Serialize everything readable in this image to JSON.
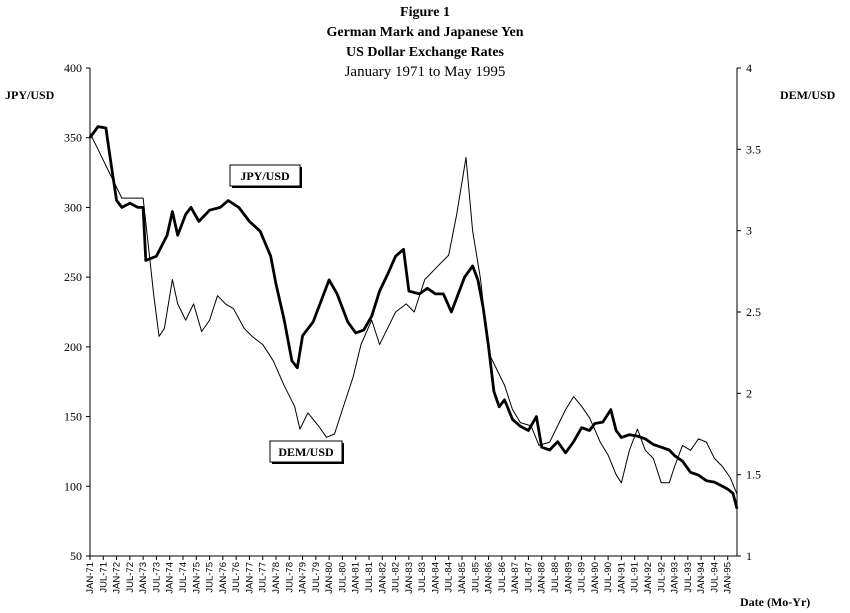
{
  "chart_data": {
    "type": "line",
    "title": "Figure 1",
    "subtitle_lines": [
      "German Mark and Japanese Yen",
      "US Dollar Exchange Rates",
      "January 1971 to May 1995"
    ],
    "ylabel_left": "JPY/USD",
    "ylabel_right": "DEM/USD",
    "xlabel": "Date (Mo-Yr)",
    "ylim_left": [
      50,
      400
    ],
    "ylim_right": [
      1,
      4
    ],
    "yticks_left": [
      "50",
      "100",
      "150",
      "200",
      "250",
      "300",
      "350",
      "400"
    ],
    "yticks_right": [
      "1",
      "1.5",
      "2",
      "2.5",
      "3",
      "3.5",
      "4"
    ],
    "x_tick_labels": [
      "JAN-71",
      "JUL-71",
      "JAN-72",
      "JUL-72",
      "JAN-73",
      "JUL-73",
      "JAN-74",
      "JUL-74",
      "JAN-75",
      "JUL-75",
      "JAN-76",
      "JUL-76",
      "JAN-77",
      "JUL-77",
      "JAN-78",
      "JUL-78",
      "JAN-79",
      "JUL-79",
      "JAN-80",
      "JUL-80",
      "JAN-81",
      "JUL-81",
      "JAN-82",
      "JUL-82",
      "JAN-83",
      "JUL-83",
      "JAN-84",
      "JUL-84",
      "JAN-85",
      "JUL-85",
      "JAN-86",
      "JUL-86",
      "JAN-87",
      "JUL-87",
      "JAN-88",
      "JUL-88",
      "JAN-89",
      "JUL-89",
      "JAN-90",
      "JUL-90",
      "JAN-91",
      "JUL-91",
      "JAN-92",
      "JUL-92",
      "JAN-93",
      "JUL-93",
      "JAN-94",
      "JUL-94",
      "JAN-95"
    ],
    "series": [
      {
        "name": "JPY/USD",
        "axis": "left",
        "style": "thick",
        "x": [
          1971.0,
          1971.3,
          1971.6,
          1971.8,
          1972.0,
          1972.2,
          1972.5,
          1972.8,
          1973.0,
          1973.1,
          1973.5,
          1973.9,
          1974.1,
          1974.3,
          1974.6,
          1974.8,
          1975.1,
          1975.5,
          1975.9,
          1976.2,
          1976.6,
          1977.0,
          1977.4,
          1977.8,
          1978.0,
          1978.3,
          1978.6,
          1978.8,
          1979.0,
          1979.4,
          1979.8,
          1980.0,
          1980.3,
          1980.7,
          1981.0,
          1981.3,
          1981.6,
          1981.9,
          1982.2,
          1982.5,
          1982.8,
          1983.0,
          1983.4,
          1983.7,
          1984.0,
          1984.3,
          1984.6,
          1984.9,
          1985.1,
          1985.4,
          1985.6,
          1985.8,
          1986.0,
          1986.2,
          1986.4,
          1986.6,
          1986.9,
          1987.2,
          1987.5,
          1987.8,
          1988.0,
          1988.3,
          1988.6,
          1988.9,
          1989.2,
          1989.5,
          1989.8,
          1990.0,
          1990.3,
          1990.6,
          1990.8,
          1991.0,
          1991.3,
          1991.6,
          1991.9,
          1992.2,
          1992.5,
          1992.8,
          1993.0,
          1993.3,
          1993.6,
          1993.9,
          1994.2,
          1994.5,
          1994.8,
          1995.0,
          1995.2,
          1995.35
        ],
        "values": [
          350,
          358,
          357,
          330,
          305,
          300,
          303,
          300,
          300,
          262,
          265,
          280,
          297,
          280,
          295,
          300,
          290,
          298,
          300,
          305,
          300,
          290,
          283,
          265,
          245,
          220,
          190,
          185,
          208,
          218,
          238,
          248,
          238,
          218,
          210,
          212,
          222,
          240,
          252,
          265,
          270,
          240,
          238,
          242,
          238,
          238,
          225,
          240,
          250,
          258,
          248,
          228,
          200,
          168,
          157,
          162,
          148,
          143,
          140,
          150,
          128,
          126,
          132,
          124,
          132,
          142,
          140,
          145,
          146,
          155,
          140,
          135,
          137,
          136,
          134,
          130,
          128,
          126,
          122,
          118,
          110,
          108,
          104,
          103,
          100,
          98,
          95,
          84
        ]
      },
      {
        "name": "DEM/USD",
        "axis": "right",
        "style": "thin",
        "x": [
          1971.0,
          1971.3,
          1971.6,
          1971.9,
          1972.2,
          1972.6,
          1973.0,
          1973.2,
          1973.4,
          1973.6,
          1973.8,
          1974.1,
          1974.3,
          1974.6,
          1974.9,
          1975.2,
          1975.5,
          1975.8,
          1976.1,
          1976.4,
          1976.8,
          1977.1,
          1977.5,
          1977.9,
          1978.3,
          1978.7,
          1978.9,
          1979.2,
          1979.6,
          1979.9,
          1980.2,
          1980.5,
          1980.9,
          1981.2,
          1981.6,
          1981.9,
          1982.2,
          1982.5,
          1982.9,
          1983.2,
          1983.6,
          1983.9,
          1984.2,
          1984.5,
          1984.8,
          1985.0,
          1985.15,
          1985.4,
          1985.7,
          1986.0,
          1986.3,
          1986.6,
          1986.9,
          1987.2,
          1987.6,
          1987.9,
          1988.3,
          1988.6,
          1988.9,
          1989.2,
          1989.5,
          1989.8,
          1990.2,
          1990.5,
          1990.8,
          1991.0,
          1991.3,
          1991.6,
          1991.9,
          1992.2,
          1992.5,
          1992.8,
          1993.0,
          1993.3,
          1993.6,
          1993.9,
          1994.2,
          1994.5,
          1994.8,
          1995.1,
          1995.35
        ],
        "values": [
          3.6,
          3.5,
          3.4,
          3.3,
          3.2,
          3.2,
          3.2,
          2.9,
          2.6,
          2.35,
          2.4,
          2.7,
          2.55,
          2.45,
          2.55,
          2.38,
          2.45,
          2.6,
          2.55,
          2.52,
          2.4,
          2.35,
          2.3,
          2.2,
          2.05,
          1.92,
          1.78,
          1.88,
          1.8,
          1.73,
          1.75,
          1.9,
          2.1,
          2.3,
          2.45,
          2.3,
          2.4,
          2.5,
          2.55,
          2.5,
          2.7,
          2.75,
          2.8,
          2.85,
          3.1,
          3.3,
          3.45,
          3.0,
          2.7,
          2.25,
          2.15,
          2.05,
          1.9,
          1.82,
          1.8,
          1.68,
          1.7,
          1.8,
          1.9,
          1.98,
          1.92,
          1.85,
          1.7,
          1.62,
          1.5,
          1.45,
          1.65,
          1.78,
          1.65,
          1.6,
          1.45,
          1.45,
          1.55,
          1.68,
          1.65,
          1.72,
          1.7,
          1.6,
          1.55,
          1.48,
          1.38
        ]
      }
    ],
    "callouts": [
      {
        "text": "JPY/USD",
        "series": "JPY/USD"
      },
      {
        "text": "DEM/USD",
        "series": "DEM/USD"
      }
    ]
  }
}
